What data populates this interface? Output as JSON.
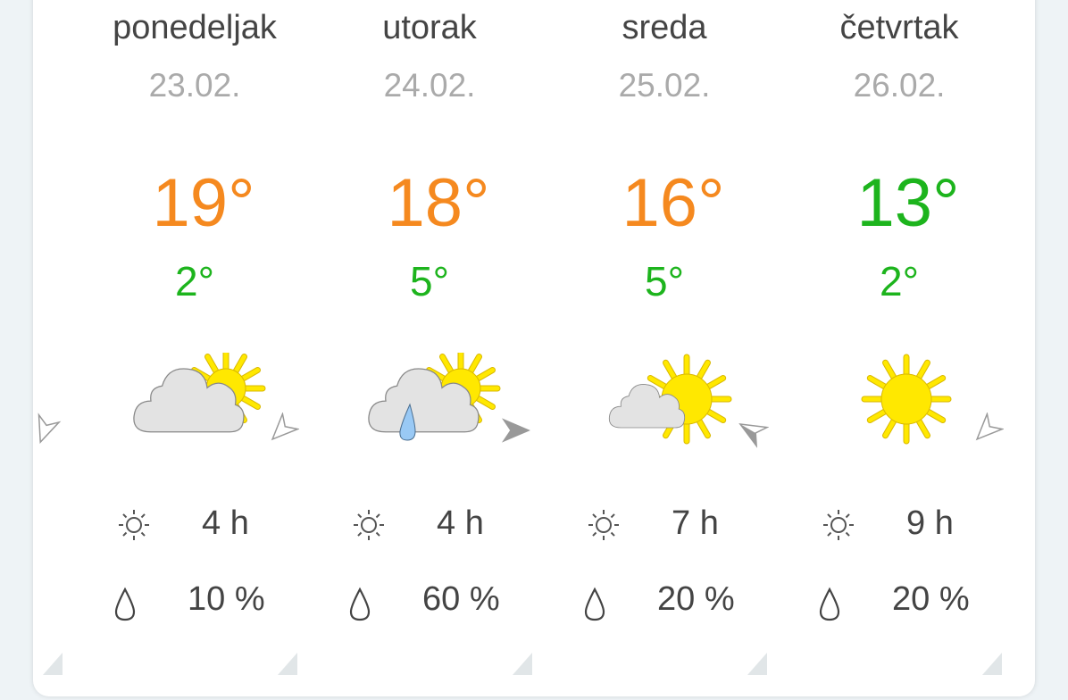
{
  "colors": {
    "warm": "#f5891f",
    "cool": "#1db41d",
    "sun": "#ffe800",
    "cloud": "#e3e3e3",
    "rain": "#99c9f5"
  },
  "days": [
    {
      "name": "ponedeljak",
      "date": "23.02.",
      "high": "19°",
      "high_color": "warm",
      "low": "2°",
      "low_color": "cool",
      "icon": "partly-cloudy",
      "wind_dir_deg": 225,
      "wind_style": "outline",
      "sun": "4 h",
      "rain": "10 %"
    },
    {
      "name": "utorak",
      "date": "24.02.",
      "high": "18°",
      "high_color": "warm",
      "low": "5°",
      "low_color": "cool",
      "icon": "partly-cloudy-rain",
      "wind_dir_deg": 90,
      "wind_style": "filled",
      "sun": "4 h",
      "rain": "60 %"
    },
    {
      "name": "sreda",
      "date": "25.02.",
      "high": "16°",
      "high_color": "warm",
      "low": "5°",
      "low_color": "cool",
      "icon": "mostly-sunny",
      "wind_dir_deg": 300,
      "wind_style": "half",
      "sun": "7 h",
      "rain": "20 %"
    },
    {
      "name": "četvrtak",
      "date": "26.02.",
      "high": "13°",
      "high_color": "cool",
      "low": "2°",
      "low_color": "cool",
      "icon": "sunny",
      "wind_dir_deg": 225,
      "wind_style": "outline",
      "sun": "9 h",
      "rain": "20 %"
    }
  ],
  "previous_wind": {
    "wind_dir_deg": 200,
    "wind_style": "outline"
  }
}
